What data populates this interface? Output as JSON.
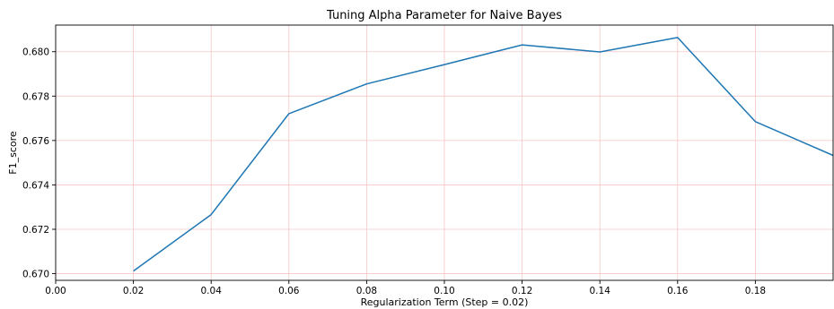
{
  "chart_data": {
    "type": "line",
    "title": "Tuning Alpha Parameter for Naive Bayes",
    "xlabel": "Regularization Term (Step = 0.02)",
    "ylabel": "F1_score",
    "xlim": [
      0.0,
      0.2
    ],
    "ylim": [
      0.6697,
      0.6812
    ],
    "x_ticks": [
      0.0,
      0.02,
      0.04,
      0.06,
      0.08,
      0.1,
      0.12,
      0.14,
      0.16,
      0.18
    ],
    "x_tick_labels": [
      "0.00",
      "0.02",
      "0.04",
      "0.06",
      "0.08",
      "0.10",
      "0.12",
      "0.14",
      "0.16",
      "0.18"
    ],
    "y_ticks": [
      0.67,
      0.672,
      0.674,
      0.676,
      0.678,
      0.68
    ],
    "y_tick_labels": [
      "0.670",
      "0.672",
      "0.674",
      "0.676",
      "0.678",
      "0.680"
    ],
    "grid": true,
    "grid_color": "#f7c6c6",
    "line_color": "#1f77b4",
    "series": [
      {
        "x": [
          0.02,
          0.04,
          0.06,
          0.08,
          0.1,
          0.12,
          0.14,
          0.16,
          0.18,
          0.2
        ],
        "values": [
          0.67012,
          0.67266,
          0.67721,
          0.67855,
          0.67942,
          0.68031,
          0.67999,
          0.68064,
          0.67685,
          0.67533
        ]
      }
    ]
  }
}
